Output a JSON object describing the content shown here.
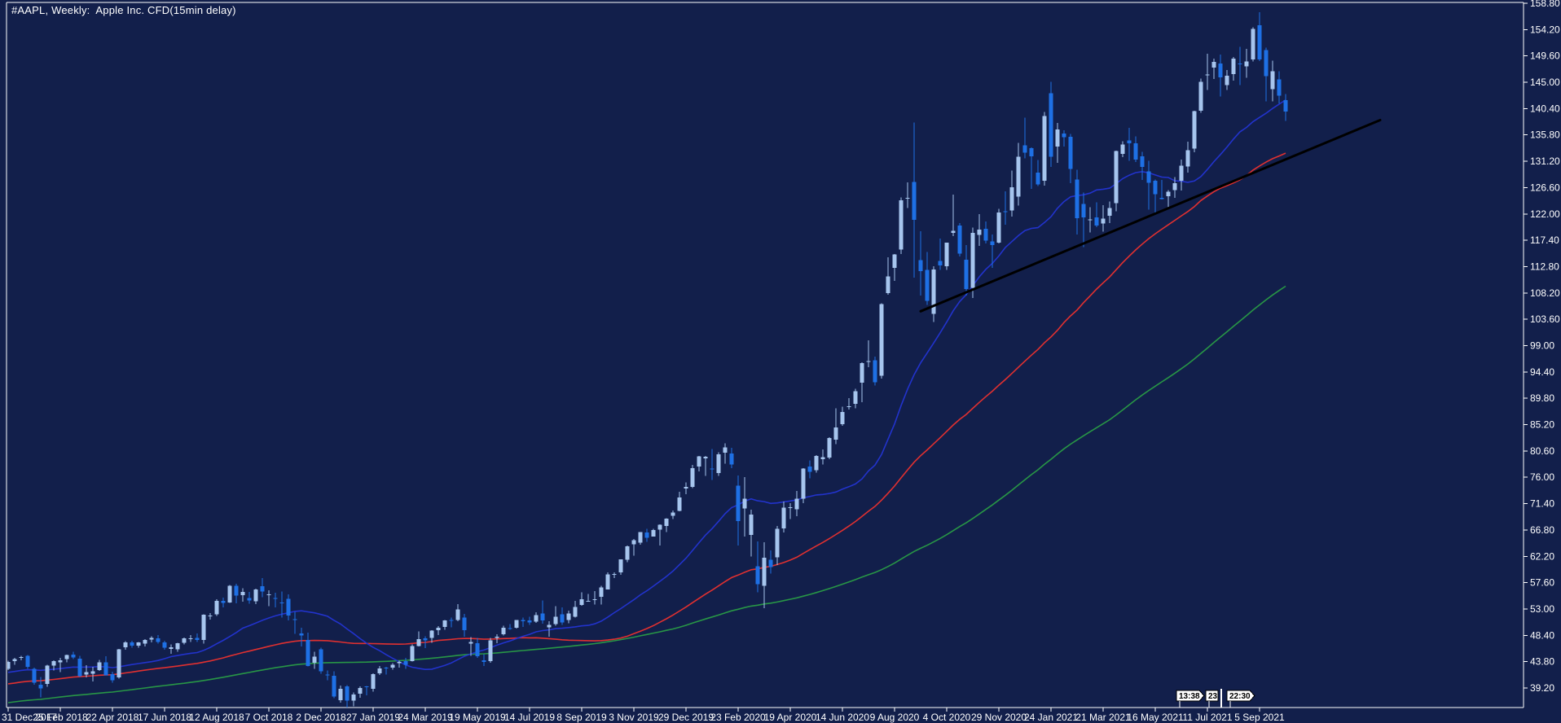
{
  "window": {
    "title": "#AAPL, Weekly:  Apple Inc. CFD(15min delay)"
  },
  "colors": {
    "background": "#121F4B",
    "frame": "#FFFFFF",
    "axis_text": "#FFFFFF",
    "bull_candle": "#A6C5EE",
    "bear_candle": "#1E70E5",
    "ma_fast": "#2233CC",
    "ma_medium": "#E03030",
    "ma_slow": "#289646",
    "trendline": "#000000",
    "tag_background": "#FFFFFF",
    "tag_text": "#000000"
  },
  "time_tags": {
    "left": "13:38",
    "middle": "23",
    "right": "22:30"
  },
  "chart_data": {
    "type": "candlestick",
    "title": "#AAPL, Weekly: Apple Inc. CFD(15min delay)",
    "symbol": "#AAPL",
    "period": "Weekly",
    "y_axis_ticks": [
      "158.80",
      "154.20",
      "149.60",
      "145.00",
      "140.40",
      "135.80",
      "131.20",
      "126.60",
      "122.00",
      "117.40",
      "112.80",
      "108.20",
      "103.60",
      "99.00",
      "94.40",
      "89.80",
      "85.20",
      "80.60",
      "76.00",
      "71.40",
      "66.80",
      "62.20",
      "57.60",
      "53.00",
      "48.40",
      "43.80",
      "39.20"
    ],
    "x_axis_ticks": [
      "31 Dec 2017",
      "25 Feb 2018",
      "22 Apr 2018",
      "17 Jun 2018",
      "12 Aug 2018",
      "7 Oct 2018",
      "2 Dec 2018",
      "27 Jan 2019",
      "24 Mar 2019",
      "19 May 2019",
      "14 Jul 2019",
      "8 Sep 2019",
      "3 Nov 2019",
      "29 Dec 2019",
      "23 Feb 2020",
      "19 Apr 2020",
      "14 Jun 2020",
      "9 Aug 2020",
      "4 Oct 2020",
      "29 Nov 2020",
      "24 Jan 2021",
      "21 Mar 2021",
      "16 May 2021",
      "11 Jul 2021",
      "5 Sep 2021"
    ],
    "bars_per_tick": 8,
    "candles": [
      [
        42.54,
        43.98,
        42.31,
        43.75
      ],
      [
        43.9,
        44.45,
        43.24,
        44.27
      ],
      [
        44.47,
        44.84,
        44.04,
        44.62
      ],
      [
        44.85,
        44.94,
        42.51,
        42.88
      ],
      [
        42.54,
        42.73,
        39.78,
        40.13
      ],
      [
        39.78,
        41.12,
        37.56,
        39.1
      ],
      [
        39.88,
        43.27,
        39.45,
        43.11
      ],
      [
        43.1,
        44.02,
        42.26,
        43.88
      ],
      [
        43.71,
        44.48,
        41.96,
        44.05
      ],
      [
        44.22,
        45.04,
        43.69,
        44.99
      ],
      [
        45.05,
        45.54,
        44.26,
        44.51
      ],
      [
        44.33,
        44.8,
        41.11,
        41.24
      ],
      [
        41.54,
        43.17,
        41.05,
        41.95
      ],
      [
        41.66,
        42.87,
        40.31,
        42.1
      ],
      [
        42.33,
        44.1,
        42.17,
        43.68
      ],
      [
        43.7,
        44.73,
        41.4,
        41.43
      ],
      [
        41.6,
        42.05,
        40.16,
        40.58
      ],
      [
        41.03,
        46.06,
        40.84,
        45.96
      ],
      [
        46.3,
        47.36,
        45.86,
        47.15
      ],
      [
        47.14,
        47.48,
        46.26,
        46.58
      ],
      [
        46.62,
        47.24,
        46.21,
        47.15
      ],
      [
        46.93,
        47.73,
        46.44,
        47.56
      ],
      [
        47.68,
        48.25,
        47.17,
        47.92
      ],
      [
        47.86,
        48.43,
        46.94,
        47.21
      ],
      [
        47.16,
        47.45,
        45.86,
        46.23
      ],
      [
        46.02,
        46.79,
        45.18,
        46.28
      ],
      [
        45.95,
        47.09,
        45.54,
        46.99
      ],
      [
        47.1,
        48.03,
        46.81,
        47.84
      ],
      [
        47.76,
        48.41,
        47.22,
        47.89
      ],
      [
        47.92,
        48.71,
        47.26,
        47.6
      ],
      [
        47.58,
        52.1,
        46.92,
        51.99
      ],
      [
        51.87,
        52.28,
        51.15,
        51.88
      ],
      [
        52.04,
        54.68,
        51.77,
        54.4
      ],
      [
        54.41,
        54.98,
        53.25,
        54.04
      ],
      [
        54.16,
        57.22,
        54.03,
        57.04
      ],
      [
        57.08,
        57.42,
        54.0,
        55.33
      ],
      [
        55.44,
        56.61,
        54.25,
        55.96
      ],
      [
        54.95,
        55.96,
        53.9,
        54.47
      ],
      [
        54.36,
        56.56,
        53.85,
        56.44
      ],
      [
        56.99,
        58.37,
        55.05,
        56.07
      ],
      [
        55.52,
        56.28,
        53.51,
        55.53
      ],
      [
        54.92,
        55.84,
        53.3,
        54.83
      ],
      [
        54.16,
        56.04,
        51.52,
        54.08
      ],
      [
        54.76,
        55.59,
        51.02,
        51.87
      ],
      [
        51.21,
        52.51,
        48.65,
        51.12
      ],
      [
        48.72,
        49.72,
        46.46,
        48.38
      ],
      [
        47.61,
        48.84,
        42.96,
        43.07
      ],
      [
        43.61,
        45.54,
        42.56,
        44.65
      ],
      [
        45.96,
        46.24,
        41.72,
        42.12
      ],
      [
        41.53,
        42.25,
        40.53,
        41.37
      ],
      [
        41.35,
        42.14,
        37.41,
        37.68
      ],
      [
        37.04,
        39.63,
        36.65,
        39.06
      ],
      [
        39.46,
        39.71,
        35.5,
        36.98
      ],
      [
        37.02,
        38.45,
        35.99,
        38.07
      ],
      [
        38.22,
        39.47,
        37.51,
        39.21
      ],
      [
        39.45,
        39.53,
        37.93,
        39.44
      ],
      [
        39.06,
        41.74,
        38.53,
        41.63
      ],
      [
        41.74,
        43.07,
        41.48,
        42.6
      ],
      [
        42.77,
        42.93,
        41.57,
        42.6
      ],
      [
        42.75,
        43.57,
        42.41,
        43.24
      ],
      [
        43.57,
        43.97,
        42.73,
        43.74
      ],
      [
        43.92,
        44.44,
        42.58,
        43.23
      ],
      [
        43.87,
        46.83,
        43.84,
        46.53
      ],
      [
        46.55,
        49.08,
        46.45,
        47.76
      ],
      [
        47.88,
        48.22,
        46.15,
        47.49
      ],
      [
        47.91,
        49.27,
        47.1,
        49.25
      ],
      [
        49.31,
        50.03,
        48.43,
        49.72
      ],
      [
        49.86,
        51.04,
        49.33,
        50.97
      ],
      [
        51.11,
        51.49,
        49.78,
        51.08
      ],
      [
        51.1,
        53.83,
        50.88,
        52.94
      ],
      [
        51.47,
        52.12,
        48.15,
        49.29
      ],
      [
        46.93,
        48.12,
        44.8,
        47.25
      ],
      [
        47.0,
        47.97,
        44.46,
        44.74
      ],
      [
        44.06,
        45.08,
        43.07,
        43.77
      ],
      [
        43.9,
        47.98,
        43.63,
        47.54
      ],
      [
        47.95,
        48.62,
        47.06,
        48.19
      ],
      [
        48.61,
        50.08,
        48.4,
        49.69
      ],
      [
        49.67,
        50.39,
        49.34,
        49.48
      ],
      [
        49.72,
        51.11,
        49.6,
        51.06
      ],
      [
        51.09,
        51.53,
        49.88,
        50.83
      ],
      [
        51.02,
        51.63,
        50.21,
        50.65
      ],
      [
        50.79,
        52.44,
        50.58,
        51.94
      ],
      [
        52.19,
        54.51,
        50.41,
        51.0
      ],
      [
        49.82,
        50.88,
        48.15,
        50.25
      ],
      [
        50.33,
        53.48,
        50.09,
        51.63
      ],
      [
        52.04,
        53.26,
        50.25,
        50.66
      ],
      [
        51.11,
        52.74,
        50.53,
        52.19
      ],
      [
        51.61,
        54.44,
        51.49,
        53.32
      ],
      [
        53.71,
        55.93,
        53.58,
        54.69
      ],
      [
        54.43,
        55.64,
        54.3,
        54.43
      ],
      [
        54.64,
        56.15,
        53.78,
        54.7
      ],
      [
        55.13,
        57.06,
        53.78,
        56.75
      ],
      [
        56.41,
        59.41,
        56.41,
        59.05
      ],
      [
        59.1,
        59.39,
        58.37,
        59.1
      ],
      [
        59.38,
        61.68,
        58.98,
        61.65
      ],
      [
        61.63,
        64.09,
        61.2,
        63.96
      ],
      [
        64.33,
        65.24,
        62.29,
        65.04
      ],
      [
        64.57,
        66.45,
        64.23,
        66.44
      ],
      [
        66.39,
        66.97,
        64.75,
        65.45
      ],
      [
        65.68,
        67.0,
        65.63,
        66.81
      ],
      [
        66.82,
        67.75,
        64.07,
        67.68
      ],
      [
        67.5,
        68.82,
        66.46,
        68.79
      ],
      [
        69.25,
        70.2,
        68.73,
        69.86
      ],
      [
        70.13,
        73.49,
        70.09,
        72.45
      ],
      [
        74.06,
        75.14,
        73.05,
        74.36
      ],
      [
        74.29,
        78.17,
        74.13,
        77.58
      ],
      [
        77.91,
        79.73,
        77.06,
        79.68
      ],
      [
        79.3,
        79.75,
        76.22,
        79.58
      ],
      [
        77.51,
        80.97,
        75.56,
        77.38
      ],
      [
        76.74,
        80.35,
        76.26,
        80.01
      ],
      [
        80.32,
        81.96,
        78.41,
        81.24
      ],
      [
        80.14,
        81.14,
        77.63,
        78.26
      ],
      [
        74.54,
        76.29,
        64.09,
        68.34
      ],
      [
        70.57,
        76.0,
        65.62,
        72.26
      ],
      [
        65.95,
        70.31,
        62.18,
        69.49
      ],
      [
        60.49,
        64.77,
        55.9,
        57.31
      ],
      [
        57.02,
        64.67,
        53.15,
        61.94
      ],
      [
        61.63,
        63.24,
        59.22,
        60.35
      ],
      [
        62.06,
        67.52,
        60.7,
        66.99
      ],
      [
        67.08,
        71.77,
        66.36,
        70.7
      ],
      [
        70.72,
        71.46,
        68.72,
        70.74
      ],
      [
        70.45,
        73.63,
        69.21,
        72.27
      ],
      [
        72.29,
        77.59,
        71.46,
        77.53
      ],
      [
        77.85,
        78.98,
        75.8,
        76.93
      ],
      [
        77.23,
        79.88,
        76.81,
        79.72
      ],
      [
        79.19,
        80.86,
        78.27,
        79.49
      ],
      [
        79.44,
        83.0,
        79.13,
        82.88
      ],
      [
        82.56,
        88.07,
        81.83,
        84.7
      ],
      [
        85.27,
        88.3,
        85.0,
        87.43
      ],
      [
        88.31,
        89.86,
        87.82,
        88.41
      ],
      [
        88.83,
        91.49,
        88.03,
        91.03
      ],
      [
        92.5,
        96.06,
        89.14,
        95.92
      ],
      [
        96.26,
        99.96,
        95.26,
        96.33
      ],
      [
        96.42,
        97.08,
        92.01,
        92.61
      ],
      [
        93.71,
        106.42,
        93.25,
        106.26
      ],
      [
        108.2,
        114.41,
        107.89,
        111.11
      ],
      [
        112.6,
        115.0,
        110.3,
        114.91
      ],
      [
        115.75,
        124.87,
        115.01,
        124.37
      ],
      [
        124.7,
        127.49,
        123.05,
        124.81
      ],
      [
        127.58,
        137.98,
        110.89,
        120.96
      ],
      [
        113.95,
        118.99,
        107.77,
        112.0
      ],
      [
        112.25,
        115.37,
        106.09,
        106.84
      ],
      [
        104.54,
        112.86,
        103.1,
        112.28
      ],
      [
        113.79,
        117.72,
        112.22,
        113.02
      ],
      [
        112.89,
        117.0,
        112.25,
        116.97
      ],
      [
        118.72,
        125.39,
        118.15,
        119.02
      ],
      [
        119.96,
        120.42,
        114.59,
        115.04
      ],
      [
        114.01,
        116.55,
        107.72,
        108.86
      ],
      [
        109.11,
        119.63,
        107.32,
        118.69
      ],
      [
        118.32,
        121.99,
        116.44,
        119.26
      ],
      [
        119.44,
        120.67,
        116.81,
        117.34
      ],
      [
        117.18,
        118.41,
        112.59,
        116.59
      ],
      [
        116.97,
        122.86,
        116.81,
        122.25
      ],
      [
        122.43,
        125.95,
        120.15,
        122.41
      ],
      [
        122.6,
        129.58,
        121.54,
        126.66
      ],
      [
        125.02,
        134.41,
        123.45,
        131.97
      ],
      [
        133.99,
        138.79,
        131.72,
        132.69
      ],
      [
        133.52,
        133.61,
        126.38,
        132.05
      ],
      [
        129.19,
        131.45,
        126.86,
        127.14
      ],
      [
        127.78,
        139.85,
        126.94,
        139.07
      ],
      [
        143.07,
        145.09,
        130.21,
        131.96
      ],
      [
        133.75,
        137.88,
        130.93,
        136.76
      ],
      [
        136.03,
        136.64,
        133.77,
        135.37
      ],
      [
        135.49,
        136.01,
        127.41,
        129.87
      ],
      [
        128.01,
        129.72,
        118.39,
        121.26
      ],
      [
        123.75,
        125.71,
        116.21,
        121.42
      ],
      [
        120.93,
        123.21,
        118.79,
        121.03
      ],
      [
        121.41,
        124.0,
        119.68,
        119.99
      ],
      [
        120.35,
        123.52,
        118.92,
        121.21
      ],
      [
        121.65,
        124.18,
        120.42,
        123.0
      ],
      [
        123.87,
        133.04,
        122.49,
        133.0
      ],
      [
        132.52,
        134.66,
        131.93,
        134.16
      ],
      [
        134.83,
        137.07,
        131.3,
        134.32
      ],
      [
        134.31,
        135.53,
        131.07,
        131.46
      ],
      [
        132.04,
        132.85,
        127.97,
        130.21
      ],
      [
        129.41,
        131.26,
        122.77,
        127.45
      ],
      [
        127.82,
        128.0,
        122.25,
        125.43
      ],
      [
        124.8,
        127.94,
        124.55,
        124.61
      ],
      [
        125.08,
        126.16,
        123.13,
        125.89
      ],
      [
        126.17,
        128.46,
        124.83,
        127.35
      ],
      [
        127.82,
        131.51,
        126.1,
        130.46
      ],
      [
        130.3,
        134.64,
        129.21,
        133.11
      ],
      [
        133.41,
        140.0,
        132.81,
        139.96
      ],
      [
        140.02,
        145.65,
        139.66,
        145.11
      ],
      [
        146.21,
        150.0,
        143.63,
        146.39
      ],
      [
        147.55,
        149.15,
        145.56,
        148.56
      ],
      [
        148.27,
        149.83,
        142.54,
        145.86
      ],
      [
        144.53,
        147.11,
        143.63,
        146.14
      ],
      [
        146.44,
        149.44,
        145.3,
        149.1
      ],
      [
        148.31,
        151.19,
        144.5,
        148.19
      ],
      [
        147.78,
        150.86,
        145.81,
        148.6
      ],
      [
        149.0,
        154.63,
        148.61,
        154.3
      ],
      [
        154.97,
        157.26,
        148.7,
        148.97
      ],
      [
        150.63,
        151.07,
        141.66,
        146.06
      ],
      [
        143.8,
        148.75,
        141.69,
        146.92
      ],
      [
        145.47,
        146.92,
        141.27,
        142.65
      ],
      [
        141.9,
        142.92,
        138.27,
        139.9
      ]
    ],
    "moving_averages": [
      {
        "name": "fast",
        "type": "sma",
        "period": 20,
        "color": "#2233CC"
      },
      {
        "name": "medium",
        "type": "sma",
        "period": 50,
        "color": "#E03030"
      },
      {
        "name": "slow",
        "type": "sma",
        "period": 100,
        "color": "#289646"
      }
    ],
    "trendline": {
      "from_bar": 140,
      "from_price": 105.0,
      "to_bar": 210.5,
      "to_price": 138.4,
      "color": "#000000",
      "width": 3
    },
    "time_tags": [
      "13:38",
      "23",
      "22:30"
    ]
  }
}
